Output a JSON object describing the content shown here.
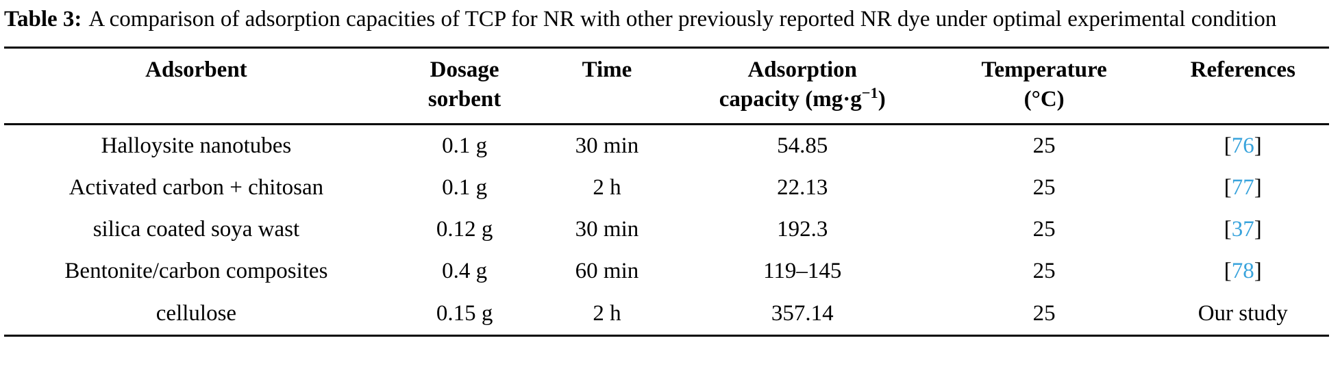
{
  "caption": {
    "label": "Table 3:",
    "text": "A comparison of adsorption capacities of TCP for NR with other previously reported NR dye under optimal experimental condition"
  },
  "colors": {
    "reference_link": "#38A3DC"
  },
  "table": {
    "headers": [
      {
        "line1": "Adsorbent"
      },
      {
        "line1": "Dosage",
        "line2": "sorbent"
      },
      {
        "line1": "Time"
      },
      {
        "line1": "Adsorption",
        "line2_pre": "capacity (mg·g",
        "line2_sup": "−1",
        "line2_post": ")"
      },
      {
        "line1": "Temperature",
        "line2": "(°C)"
      },
      {
        "line1": "References"
      }
    ],
    "rows": [
      {
        "adsorbent": "Halloysite nanotubes",
        "dosage": "0.1 g",
        "time": "30 min",
        "capacity": "54.85",
        "temperature": "25",
        "ref_open": "[",
        "ref_num": "76",
        "ref_close": "]"
      },
      {
        "adsorbent": "Activated carbon + chitosan",
        "dosage": "0.1 g",
        "time": "2 h",
        "capacity": "22.13",
        "temperature": "25",
        "ref_open": "[",
        "ref_num": "77",
        "ref_close": "]"
      },
      {
        "adsorbent": "silica coated soya wast",
        "dosage": "0.12 g",
        "time": "30 min",
        "capacity": "192.3",
        "temperature": "25",
        "ref_open": "[",
        "ref_num": "37",
        "ref_close": "]"
      },
      {
        "adsorbent": "Bentonite/carbon composites",
        "dosage": "0.4 g",
        "time": "60 min",
        "capacity": "119–145",
        "temperature": "25",
        "ref_open": "[",
        "ref_num": "78",
        "ref_close": "]"
      },
      {
        "adsorbent": "cellulose",
        "dosage": "0.15 g",
        "time": "2 h",
        "capacity": "357.14",
        "temperature": "25",
        "reference": "Our study"
      }
    ]
  }
}
